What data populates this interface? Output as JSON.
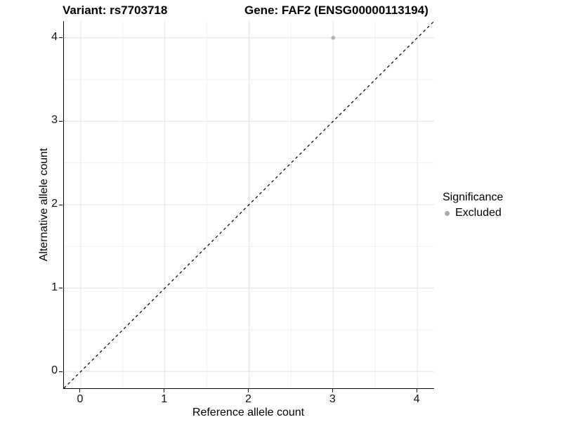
{
  "titles": {
    "variant": "Variant: rs7703718",
    "gene": "Gene: FAF2 (ENSG00000113194)"
  },
  "chart_data": {
    "type": "scatter",
    "title": "Variant: rs7703718 | Gene: FAF2 (ENSG00000113194)",
    "xlabel": "Reference allele count",
    "ylabel": "Alternative allele count",
    "xlim": [
      -0.2,
      4.2
    ],
    "ylim": [
      -0.2,
      4.2
    ],
    "x_ticks": [
      0,
      1,
      2,
      3,
      4
    ],
    "y_ticks": [
      0,
      1,
      2,
      3,
      4
    ],
    "minor_ticks": [
      0.5,
      1.5,
      2.5,
      3.5
    ],
    "grid": "on",
    "series": [
      {
        "name": "Excluded",
        "color": "#b3b3b3",
        "points": [
          {
            "x": 3,
            "y": 4
          }
        ]
      }
    ],
    "reference_line": {
      "type": "identity",
      "style": "dashed",
      "from": [
        -0.2,
        -0.2
      ],
      "to": [
        4.2,
        4.2
      ],
      "color": "#000000"
    },
    "legend": {
      "title": "Significance",
      "position": "right",
      "items": [
        {
          "label": "Excluded",
          "color": "#a9a9a9"
        }
      ]
    }
  },
  "colors": {
    "background": "#ffffff",
    "grid_major": "#e3e3e3",
    "grid_minor": "#f1f1f1",
    "axis_line": "#000000",
    "text": "#000000"
  }
}
